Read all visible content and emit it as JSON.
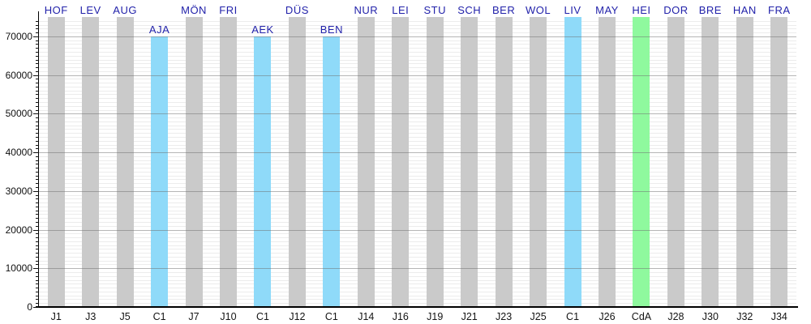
{
  "chart_data": {
    "type": "bar",
    "title": "",
    "xlabel": "",
    "ylabel": "",
    "ylim": [
      0,
      75000
    ],
    "y_ticks": [
      0,
      10000,
      20000,
      30000,
      40000,
      50000,
      60000,
      70000
    ],
    "grid": {
      "minor_step": 1000,
      "major_step": 10000,
      "minor_on": true,
      "major_on": true
    },
    "legend_position": "none",
    "categories": [
      "J1",
      "J3",
      "J5",
      "C1",
      "J7",
      "J10",
      "C1",
      "J12",
      "C1",
      "J14",
      "J16",
      "J19",
      "J21",
      "J23",
      "J25",
      "C1",
      "J26",
      "CdA",
      "J28",
      "J30",
      "J32",
      "J34"
    ],
    "bar_top_labels": [
      "HOF",
      "LEV",
      "AUG",
      "AJA",
      "MÖN",
      "FRI",
      "AEK",
      "DÜS",
      "BEN",
      "NUR",
      "LEI",
      "STU",
      "SCH",
      "BER",
      "WOL",
      "LIV",
      "MAY",
      "HEI",
      "DOR",
      "BRE",
      "HAN",
      "FRA"
    ],
    "values": [
      75000,
      75000,
      75000,
      70000,
      75000,
      75000,
      70000,
      75000,
      70000,
      75000,
      75000,
      75000,
      75000,
      75000,
      75000,
      75000,
      75000,
      75000,
      75000,
      75000,
      75000,
      75000
    ],
    "bar_color_keys": [
      "gray",
      "gray",
      "gray",
      "blue",
      "gray",
      "gray",
      "blue",
      "gray",
      "blue",
      "gray",
      "gray",
      "gray",
      "gray",
      "gray",
      "gray",
      "blue",
      "gray",
      "green",
      "gray",
      "gray",
      "gray",
      "gray"
    ],
    "colors": {
      "gray": "#cacaca",
      "blue": "#8fdaf9",
      "green": "#8ff99e",
      "top_label": "#2222aa",
      "axis": "#000000",
      "tick_label": "#111111",
      "minor_grid": "#ececec",
      "major_grid": "#6e6e6e"
    }
  }
}
